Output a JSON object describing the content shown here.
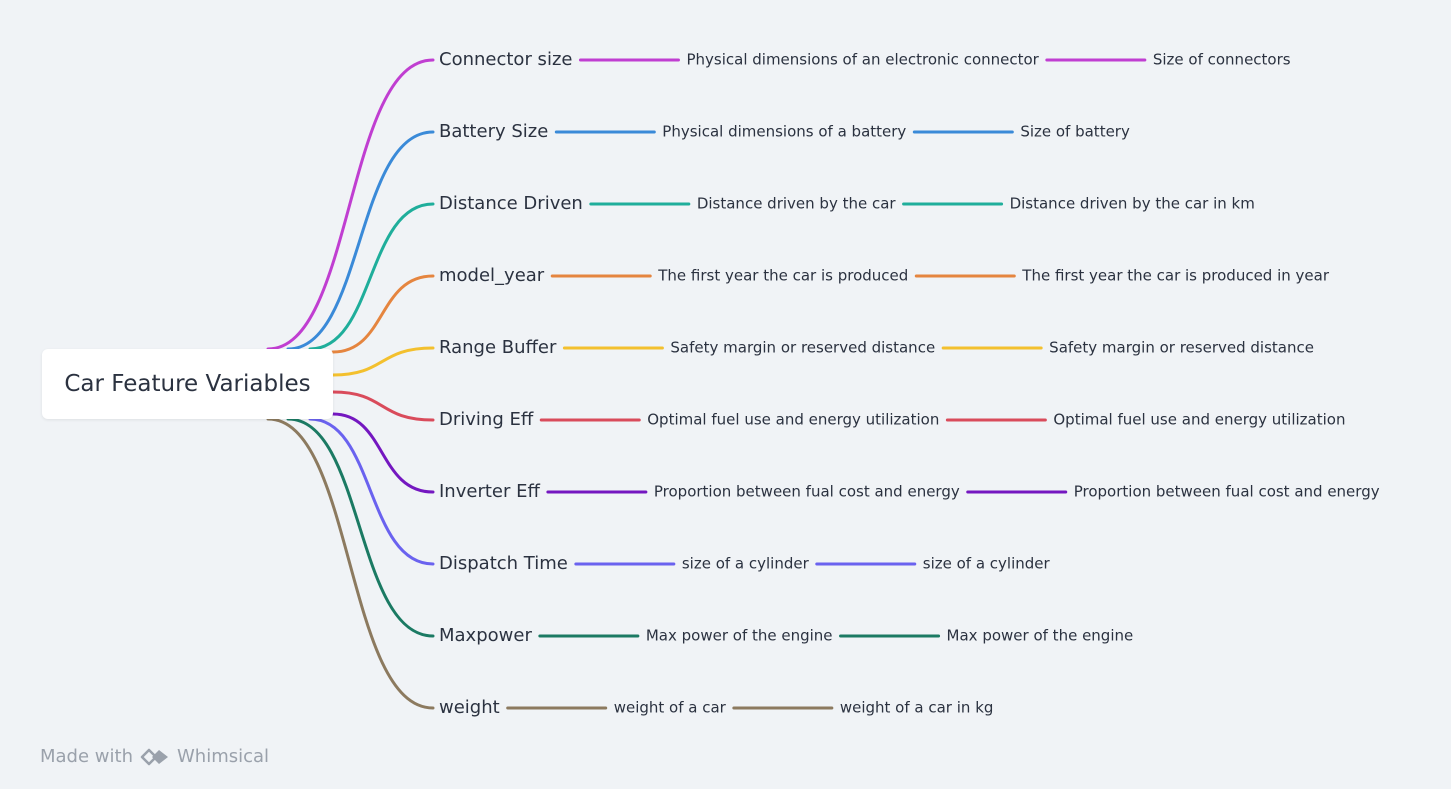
{
  "root": {
    "label": "Car Feature Variables"
  },
  "branches": [
    {
      "label": "Connector size",
      "color": "#c03ed1",
      "detail": "Physical dimensions of an electronic connector",
      "leaf": "Size of connectors"
    },
    {
      "label": "Battery Size",
      "color": "#3a8ad8",
      "detail": "Physical dimensions of a battery",
      "leaf": "Size of battery"
    },
    {
      "label": "Distance Driven",
      "color": "#1fae9b",
      "detail": "Distance driven by the car",
      "leaf": "Distance driven by the car in km"
    },
    {
      "label": "model_year",
      "color": "#e5853f",
      "detail": "The first year the car is produced",
      "leaf": "The first year the car is produced in year"
    },
    {
      "label": "Range Buffer",
      "color": "#f3c02e",
      "detail": "Safety margin or reserved distance",
      "leaf": "Safety margin or reserved distance"
    },
    {
      "label": "Driving Eff",
      "color": "#d94b5b",
      "detail": "Optimal fuel use and energy utilization",
      "leaf": "Optimal fuel use and energy utilization"
    },
    {
      "label": "Inverter Eff",
      "color": "#7417c0",
      "detail": "Proportion between fual cost and energy",
      "leaf": "Proportion between fual cost and energy"
    },
    {
      "label": "Dispatch Time",
      "color": "#6a62ef",
      "detail": "size of a cylinder",
      "leaf": "size of a cylinder"
    },
    {
      "label": "Maxpower",
      "color": "#1b7a63",
      "detail": "Max power of the engine",
      "leaf": "Max power of the engine"
    },
    {
      "label": "weight",
      "color": "#8c7a5f",
      "detail": "weight of a car",
      "leaf": "weight of a car in kg"
    }
  ],
  "footer": {
    "made_with": "Made with",
    "brand": "Whimsical",
    "brand_icon": "whimsical-logo-icon",
    "color": "#9aa1ab"
  }
}
